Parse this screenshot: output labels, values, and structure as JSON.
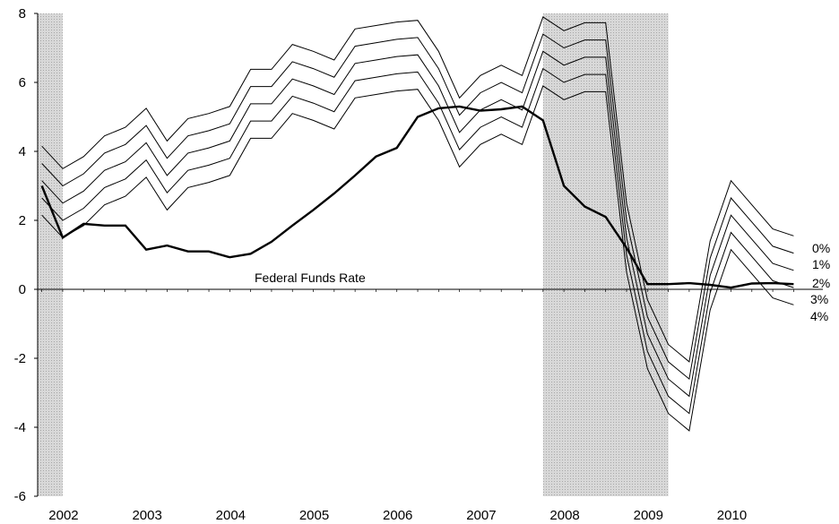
{
  "chart_data": {
    "type": "line",
    "title": "",
    "xlabel": "",
    "ylabel": "",
    "ylim": [
      -6,
      8
    ],
    "yticks": [
      -6,
      -4,
      -2,
      0,
      2,
      4,
      6,
      8
    ],
    "xlim": [
      2001.7,
      2011.1
    ],
    "xtick_labels": [
      "2002",
      "2003",
      "2004",
      "2005",
      "2006",
      "2007",
      "2008",
      "2009",
      "2010"
    ],
    "x_quarters": [
      2001.75,
      2002.0,
      2002.25,
      2002.5,
      2002.75,
      2003.0,
      2003.25,
      2003.5,
      2003.75,
      2004.0,
      2004.25,
      2004.5,
      2004.75,
      2005.0,
      2005.25,
      2005.5,
      2005.75,
      2006.0,
      2006.25,
      2006.5,
      2006.75,
      2007.0,
      2007.25,
      2007.5,
      2007.75,
      2008.0,
      2008.25,
      2008.5,
      2008.75,
      2009.0,
      2009.25,
      2009.5,
      2009.75,
      2010.0,
      2010.25,
      2010.5,
      2010.75
    ],
    "recessions": [
      [
        2001.7,
        2002.0
      ],
      [
        2007.75,
        2009.25
      ]
    ],
    "grid": false,
    "legend": "none",
    "series": [
      {
        "name": "Federal Funds Rate",
        "values": [
          3.0,
          1.5,
          1.9,
          1.85,
          1.85,
          1.15,
          1.27,
          1.1,
          1.1,
          0.93,
          1.03,
          1.38,
          1.85,
          2.3,
          2.78,
          3.3,
          3.85,
          4.1,
          5.0,
          5.25,
          5.3,
          5.18,
          5.22,
          5.3,
          4.9,
          3.0,
          2.4,
          2.1,
          1.2,
          0.15,
          0.15,
          0.18,
          0.13,
          0.05,
          0.17,
          0.18,
          0.15
        ]
      },
      {
        "name": "0%",
        "values": [
          4.15,
          3.5,
          3.85,
          4.45,
          4.7,
          5.25,
          4.3,
          4.95,
          5.1,
          5.3,
          6.38,
          6.38,
          7.1,
          6.9,
          6.65,
          7.55,
          7.65,
          7.75,
          7.8,
          6.9,
          5.55,
          6.2,
          6.5,
          6.2,
          7.9,
          7.5,
          7.73,
          7.73,
          2.5,
          -0.3,
          -1.6,
          -2.1,
          1.4,
          3.15,
          2.45,
          1.75,
          1.55
        ]
      },
      {
        "name": "1%",
        "values": [
          3.65,
          3.0,
          3.35,
          3.95,
          4.2,
          4.75,
          3.8,
          4.45,
          4.6,
          4.8,
          5.88,
          5.88,
          6.6,
          6.4,
          6.15,
          7.05,
          7.15,
          7.25,
          7.3,
          6.4,
          5.05,
          5.7,
          6.0,
          5.7,
          7.4,
          7.0,
          7.23,
          7.23,
          2.0,
          -0.8,
          -2.1,
          -2.6,
          0.9,
          2.65,
          1.95,
          1.25,
          1.05
        ]
      },
      {
        "name": "2%",
        "values": [
          3.15,
          2.5,
          2.85,
          3.45,
          3.7,
          4.25,
          3.3,
          3.95,
          4.1,
          4.3,
          5.38,
          5.38,
          6.1,
          5.9,
          5.65,
          6.55,
          6.65,
          6.75,
          6.8,
          5.9,
          4.55,
          5.2,
          5.5,
          5.2,
          6.9,
          6.5,
          6.73,
          6.73,
          1.5,
          -1.3,
          -2.6,
          -3.1,
          0.4,
          2.15,
          1.45,
          0.75,
          0.55
        ]
      },
      {
        "name": "3%",
        "values": [
          2.65,
          2.0,
          2.35,
          2.95,
          3.2,
          3.75,
          2.8,
          3.45,
          3.6,
          3.8,
          4.88,
          4.88,
          5.6,
          5.4,
          5.15,
          6.05,
          6.15,
          6.25,
          6.3,
          5.4,
          4.05,
          4.7,
          5.0,
          4.7,
          6.4,
          6.0,
          6.23,
          6.23,
          1.0,
          -1.8,
          -3.1,
          -3.6,
          -0.1,
          1.65,
          0.95,
          0.25,
          0.05
        ]
      },
      {
        "name": "4%",
        "values": [
          2.15,
          1.5,
          1.85,
          2.45,
          2.7,
          3.25,
          2.3,
          2.95,
          3.1,
          3.3,
          4.38,
          4.38,
          5.1,
          4.9,
          4.65,
          5.55,
          5.65,
          5.75,
          5.8,
          4.9,
          3.55,
          4.2,
          4.5,
          4.2,
          5.9,
          5.5,
          5.73,
          5.73,
          0.5,
          -2.3,
          -3.6,
          -4.1,
          -0.6,
          1.15,
          0.45,
          -0.25,
          -0.45
        ]
      }
    ],
    "annotations": {
      "fed_funds": "Federal Funds Rate",
      "rule_labels": [
        "0%",
        "1%",
        "2%",
        "3%",
        "4%"
      ]
    }
  }
}
